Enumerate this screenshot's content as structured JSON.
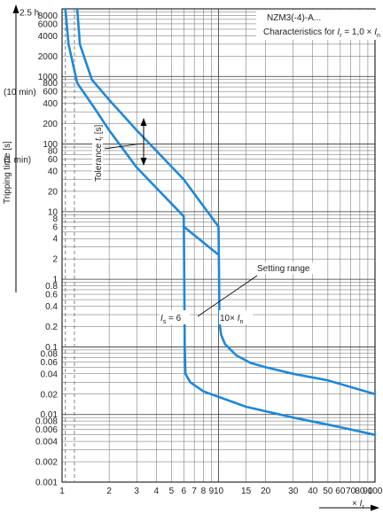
{
  "chart_data": {
    "type": "line",
    "title": "NZM3(-4)-A...",
    "subtitle": "Characteristics for I_r = 1,0 × I_n",
    "subtitle_parts": {
      "prefix": "Characteristics for ",
      "ir": "I",
      "ir_sub": "r",
      "mid": " = 1,0 × ",
      "in": "I",
      "in_sub": "n"
    },
    "ylabel": "Tripping time [s]",
    "xlabel": "× I_r",
    "xlabel_parts": {
      "prefix": "× ",
      "ir": "I",
      "ir_sub": "r"
    },
    "x_scale": "log",
    "y_scale": "log",
    "xlim": [
      1,
      100
    ],
    "ylim": [
      0.001,
      10000
    ],
    "grid": true,
    "x_ticks": [
      1,
      2,
      3,
      4,
      5,
      6,
      7,
      8,
      9,
      10,
      15,
      20,
      30,
      40,
      50,
      60,
      70,
      80,
      90,
      100
    ],
    "x_tick_labels": [
      "1",
      "2",
      "3",
      "4",
      "5",
      "6",
      "7",
      "8",
      "9",
      "10",
      "15",
      "20",
      "30",
      "40",
      "50",
      "60",
      "70",
      "80",
      "90",
      "100"
    ],
    "y_ticks": [
      8000,
      6000,
      4000,
      2000,
      1000,
      800,
      600,
      400,
      200,
      100,
      80,
      60,
      40,
      20,
      10,
      8,
      6,
      4,
      2,
      1,
      0.8,
      0.6,
      0.4,
      0.2,
      0.1,
      0.08,
      0.06,
      0.04,
      0.02,
      0.01,
      0.008,
      0.006,
      0.004,
      0.002,
      0.001
    ],
    "y_tick_labels": [
      "8000",
      "6000",
      "4000",
      "2000",
      "1000",
      "800",
      "600",
      "400",
      "200",
      "100",
      "80",
      "60",
      "40",
      "20",
      "10",
      "8",
      "6",
      "4",
      "2",
      "1",
      "0.8",
      "0.6",
      "0.4",
      "0.2",
      "0.1",
      "0.08",
      "0.06",
      "0.04",
      "0.02",
      "0.01",
      "0.008",
      "0.006",
      "0.004",
      "0.002",
      "0.001"
    ],
    "y_time_markers": [
      {
        "label": "2.5 h",
        "y": 9000
      },
      {
        "label": "(10 min)",
        "y": 600
      },
      {
        "label": "(1 min)",
        "y": 60
      }
    ],
    "dashed_x": [
      1.05,
      1.2
    ],
    "series": [
      {
        "x": [
          1.05,
          1.1,
          1.25,
          1.6,
          2.0,
          3.0,
          6.0,
          6.08,
          6.15,
          6.6,
          8.0,
          15.0,
          30.0,
          60.0,
          100.0
        ],
        "y": [
          10000,
          3000,
          800,
          350,
          160,
          45,
          8.5,
          0.1,
          0.04,
          0.03,
          0.022,
          0.013,
          0.009,
          0.0065,
          0.005
        ]
      },
      {
        "x": [
          1.25,
          1.3,
          1.55,
          2.0,
          3.0,
          6.0,
          10.0,
          10.15,
          10.4,
          11.0,
          13.0,
          16.0,
          20.0,
          30.0,
          50.0,
          100.0
        ],
        "y": [
          10000,
          3000,
          900,
          450,
          160,
          30,
          6,
          0.22,
          0.15,
          0.11,
          0.075,
          0.058,
          0.05,
          0.04,
          0.032,
          0.02
        ]
      },
      {
        "x": [
          6.0,
          10.0
        ],
        "y": [
          6,
          2.3
        ]
      }
    ],
    "annotations": {
      "tolerance": {
        "text": "Tolerance ",
        "var": "t",
        "sub": "r",
        "unit": " [s]"
      },
      "setting_range": "Setting range",
      "is6": {
        "var": "I",
        "sub": "s",
        "rest": " = 6"
      },
      "in10": {
        "prefix": "10× ",
        "var": "I",
        "sub": "n"
      }
    },
    "colors": {
      "curve": "#1e88d8",
      "grid": "#333333",
      "dashed": "#777777"
    }
  }
}
